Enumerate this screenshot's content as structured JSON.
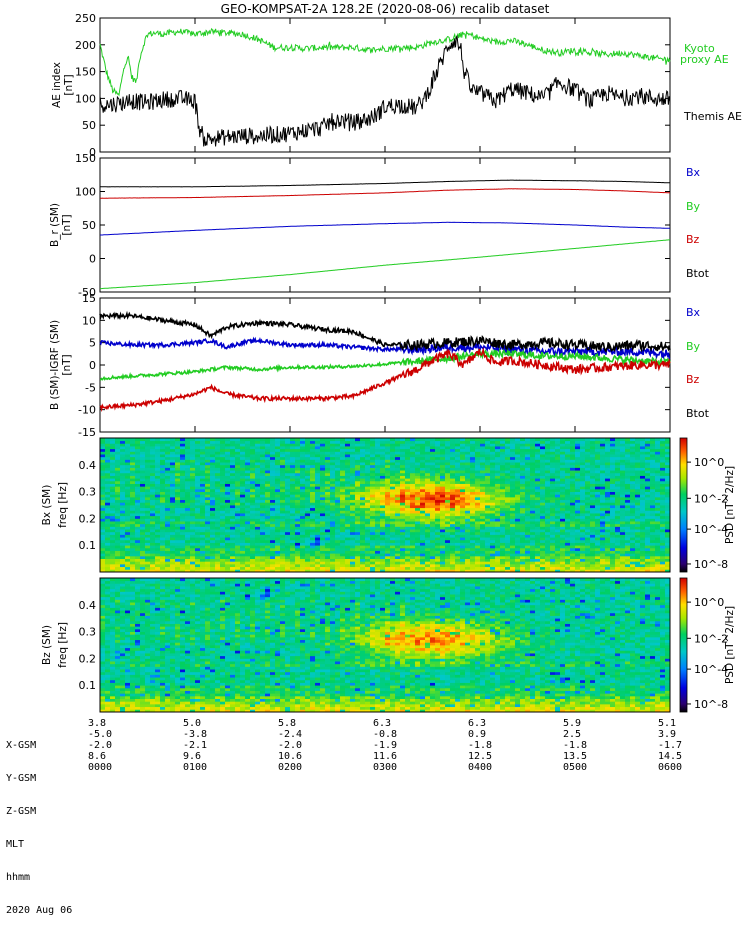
{
  "chart_data": [
    {
      "type": "line",
      "title": "GEO-KOMPSAT-2A 128.2E (2020-08-06) recalib dataset",
      "ylabel": "AE index",
      "yunit": "[nT]",
      "ylim": [
        0,
        250
      ],
      "yticks": [
        0,
        50,
        100,
        150,
        200,
        250
      ],
      "xlim": [
        0,
        360
      ],
      "series": [
        {
          "name": "Kyoto proxy AE",
          "label_lines": [
            "Kyoto",
            "proxy AE"
          ],
          "color": "#22cc22",
          "x": [
            0,
            4,
            8,
            12,
            15,
            18,
            20,
            23,
            25,
            28,
            30,
            35,
            40,
            50,
            60,
            70,
            80,
            90,
            100,
            110,
            120,
            130,
            140,
            150,
            160,
            170,
            180,
            190,
            200,
            210,
            220,
            230,
            235,
            240,
            250,
            260,
            270,
            280,
            290,
            300,
            310,
            320,
            330,
            340,
            350,
            360
          ],
          "y": [
            200,
            150,
            115,
            105,
            160,
            175,
            140,
            130,
            175,
            205,
            220,
            222,
            220,
            225,
            220,
            225,
            222,
            220,
            210,
            195,
            195,
            193,
            195,
            195,
            195,
            190,
            193,
            195,
            195,
            205,
            210,
            220,
            218,
            212,
            205,
            208,
            200,
            190,
            185,
            190,
            185,
            182,
            185,
            180,
            175,
            172
          ]
        },
        {
          "name": "Themis AE",
          "label_lines": [
            "Themis AE"
          ],
          "color": "#000000",
          "x": [
            0,
            5,
            10,
            20,
            30,
            40,
            50,
            55,
            60,
            63,
            66,
            70,
            80,
            90,
            100,
            110,
            120,
            130,
            140,
            145,
            150,
            160,
            170,
            175,
            180,
            190,
            200,
            205,
            210,
            215,
            220,
            225,
            228,
            230,
            235,
            240,
            250,
            260,
            270,
            280,
            290,
            300,
            310,
            320,
            330,
            340,
            350,
            360
          ],
          "y": [
            90,
            88,
            90,
            95,
            92,
            98,
            100,
            98,
            95,
            40,
            22,
            25,
            28,
            30,
            30,
            32,
            35,
            40,
            45,
            55,
            60,
            55,
            62,
            70,
            85,
            88,
            82,
            100,
            130,
            165,
            200,
            210,
            190,
            150,
            115,
            110,
            95,
            118,
            110,
            100,
            130,
            115,
            95,
            110,
            100,
            105,
            100,
            98
          ]
        }
      ]
    },
    {
      "type": "line",
      "ylabel": "B_r (SM)",
      "yunit": "[nT]",
      "ylim": [
        -50,
        150
      ],
      "yticks": [
        -50,
        0,
        50,
        100,
        150
      ],
      "xlim": [
        0,
        360
      ],
      "series": [
        {
          "name": "Bx",
          "color": "#0000cc",
          "x": [
            0,
            60,
            120,
            180,
            220,
            260,
            300,
            330,
            360
          ],
          "y": [
            35,
            42,
            48,
            52,
            54,
            53,
            50,
            47,
            45
          ]
        },
        {
          "name": "By",
          "color": "#22cc22",
          "x": [
            0,
            60,
            120,
            180,
            240,
            300,
            360
          ],
          "y": [
            -45,
            -36,
            -24,
            -10,
            2,
            15,
            28
          ]
        },
        {
          "name": "Bz",
          "color": "#cc0000",
          "x": [
            0,
            60,
            120,
            180,
            220,
            260,
            300,
            330,
            360
          ],
          "y": [
            90,
            91,
            94,
            98,
            102,
            104,
            103,
            101,
            98
          ]
        },
        {
          "name": "Btot",
          "color": "#000000",
          "x": [
            0,
            60,
            120,
            180,
            220,
            260,
            300,
            330,
            360
          ],
          "y": [
            107,
            107,
            109,
            112,
            115,
            117,
            116,
            115,
            113
          ]
        }
      ]
    },
    {
      "type": "line",
      "ylabel": "B (SM)-IGRF (SM)",
      "yunit": "[nT]",
      "ylim": [
        -15,
        15
      ],
      "yticks": [
        -15,
        -10,
        -5,
        0,
        5,
        10,
        15
      ],
      "xlim": [
        0,
        360
      ],
      "series": [
        {
          "name": "Bx",
          "color": "#0000cc",
          "x": [
            0,
            20,
            40,
            60,
            70,
            80,
            90,
            100,
            120,
            140,
            160,
            180,
            200,
            220,
            240,
            260,
            280,
            300,
            320,
            340,
            360
          ],
          "y": [
            5,
            4.5,
            4.5,
            5,
            5.5,
            4,
            5,
            5.5,
            4.5,
            4.5,
            4,
            3.5,
            3.5,
            4,
            4,
            3.5,
            3,
            3,
            3,
            3,
            2.5
          ]
        },
        {
          "name": "By",
          "color": "#22cc22",
          "x": [
            0,
            20,
            40,
            60,
            80,
            100,
            120,
            140,
            160,
            180,
            200,
            220,
            240,
            260,
            280,
            300,
            320,
            340,
            360
          ],
          "y": [
            -3,
            -2.5,
            -2,
            -1.5,
            -0.5,
            -1,
            -0.5,
            -0.5,
            -0.3,
            0.2,
            0.8,
            1.5,
            2.5,
            2.5,
            2,
            2,
            1.5,
            1,
            0.5
          ]
        },
        {
          "name": "Bz",
          "color": "#cc0000",
          "x": [
            0,
            20,
            40,
            60,
            70,
            80,
            90,
            100,
            120,
            140,
            160,
            180,
            200,
            210,
            220,
            230,
            240,
            250,
            260,
            280,
            300,
            320,
            340,
            360
          ],
          "y": [
            -9.5,
            -9,
            -8,
            -6.5,
            -5,
            -6.5,
            -7,
            -7.5,
            -7.5,
            -7.5,
            -7,
            -4,
            -1,
            1,
            2.5,
            0,
            3,
            0.5,
            1,
            0,
            -1,
            -0.5,
            0,
            0
          ]
        },
        {
          "name": "Btot",
          "color": "#000000",
          "x": [
            0,
            20,
            40,
            60,
            70,
            80,
            90,
            100,
            120,
            140,
            160,
            180,
            200,
            220,
            240,
            260,
            280,
            300,
            320,
            340,
            360
          ],
          "y": [
            11,
            11,
            10,
            9,
            6.5,
            8.5,
            9,
            9.5,
            9,
            8,
            7.5,
            4.5,
            4.5,
            5,
            5.5,
            4.5,
            5,
            4.5,
            4,
            4.5,
            4
          ]
        }
      ]
    },
    {
      "type": "heatmap",
      "ylabel": "Bx (SM)",
      "yunit": "freq [Hz]",
      "ylim": [
        0,
        0.5
      ],
      "yticks": [
        0.1,
        0.2,
        0.3,
        0.4
      ],
      "colorbar": {
        "label": "PSD [nT^2/Hz]",
        "ticks": [
          "10^0",
          "10^-2",
          "10^-4",
          "10^-8"
        ]
      },
      "features": [
        {
          "time_min": 210,
          "freq_hz": 0.27,
          "description": "enhanced power burst near 0330-0400"
        }
      ]
    },
    {
      "type": "heatmap",
      "ylabel": "Bz (SM)",
      "yunit": "freq [Hz]",
      "ylim": [
        0,
        0.5
      ],
      "yticks": [
        0.1,
        0.2,
        0.3,
        0.4
      ],
      "colorbar": {
        "label": "PSD [nT^2/Hz]",
        "ticks": [
          "10^0",
          "10^-2",
          "10^-4",
          "10^-8"
        ]
      },
      "features": [
        {
          "time_min": 210,
          "freq_hz": 0.27,
          "description": "enhanced power burst near 0330-0400"
        }
      ]
    }
  ],
  "legend_labels": {
    "b_panel": [
      "Bx",
      "By",
      "Bz",
      "Btot"
    ]
  },
  "ephemeris": {
    "row_labels": [
      "X-GSM",
      "Y-GSM",
      "Z-GSM",
      "MLT",
      "hhmm",
      "2020 Aug 06"
    ],
    "columns": [
      {
        "x_gsm": "3.8",
        "y_gsm": "-5.0",
        "z_gsm": "-2.0",
        "mlt": "8.6",
        "hhmm": "0000"
      },
      {
        "x_gsm": "5.0",
        "y_gsm": "-3.8",
        "z_gsm": "-2.1",
        "mlt": "9.6",
        "hhmm": "0100"
      },
      {
        "x_gsm": "5.8",
        "y_gsm": "-2.4",
        "z_gsm": "-2.0",
        "mlt": "10.6",
        "hhmm": "0200"
      },
      {
        "x_gsm": "6.3",
        "y_gsm": "-0.8",
        "z_gsm": "-1.9",
        "mlt": "11.6",
        "hhmm": "0300"
      },
      {
        "x_gsm": "6.3",
        "y_gsm": "0.9",
        "z_gsm": "-1.8",
        "mlt": "12.5",
        "hhmm": "0400"
      },
      {
        "x_gsm": "5.9",
        "y_gsm": "2.5",
        "z_gsm": "-1.8",
        "mlt": "13.5",
        "hhmm": "0500"
      },
      {
        "x_gsm": "5.1",
        "y_gsm": "3.9",
        "z_gsm": "-1.7",
        "mlt": "14.5",
        "hhmm": "0600"
      }
    ]
  },
  "colors": {
    "black": "#000000",
    "red": "#cc0000",
    "green": "#22cc22",
    "blue": "#0000cc"
  }
}
